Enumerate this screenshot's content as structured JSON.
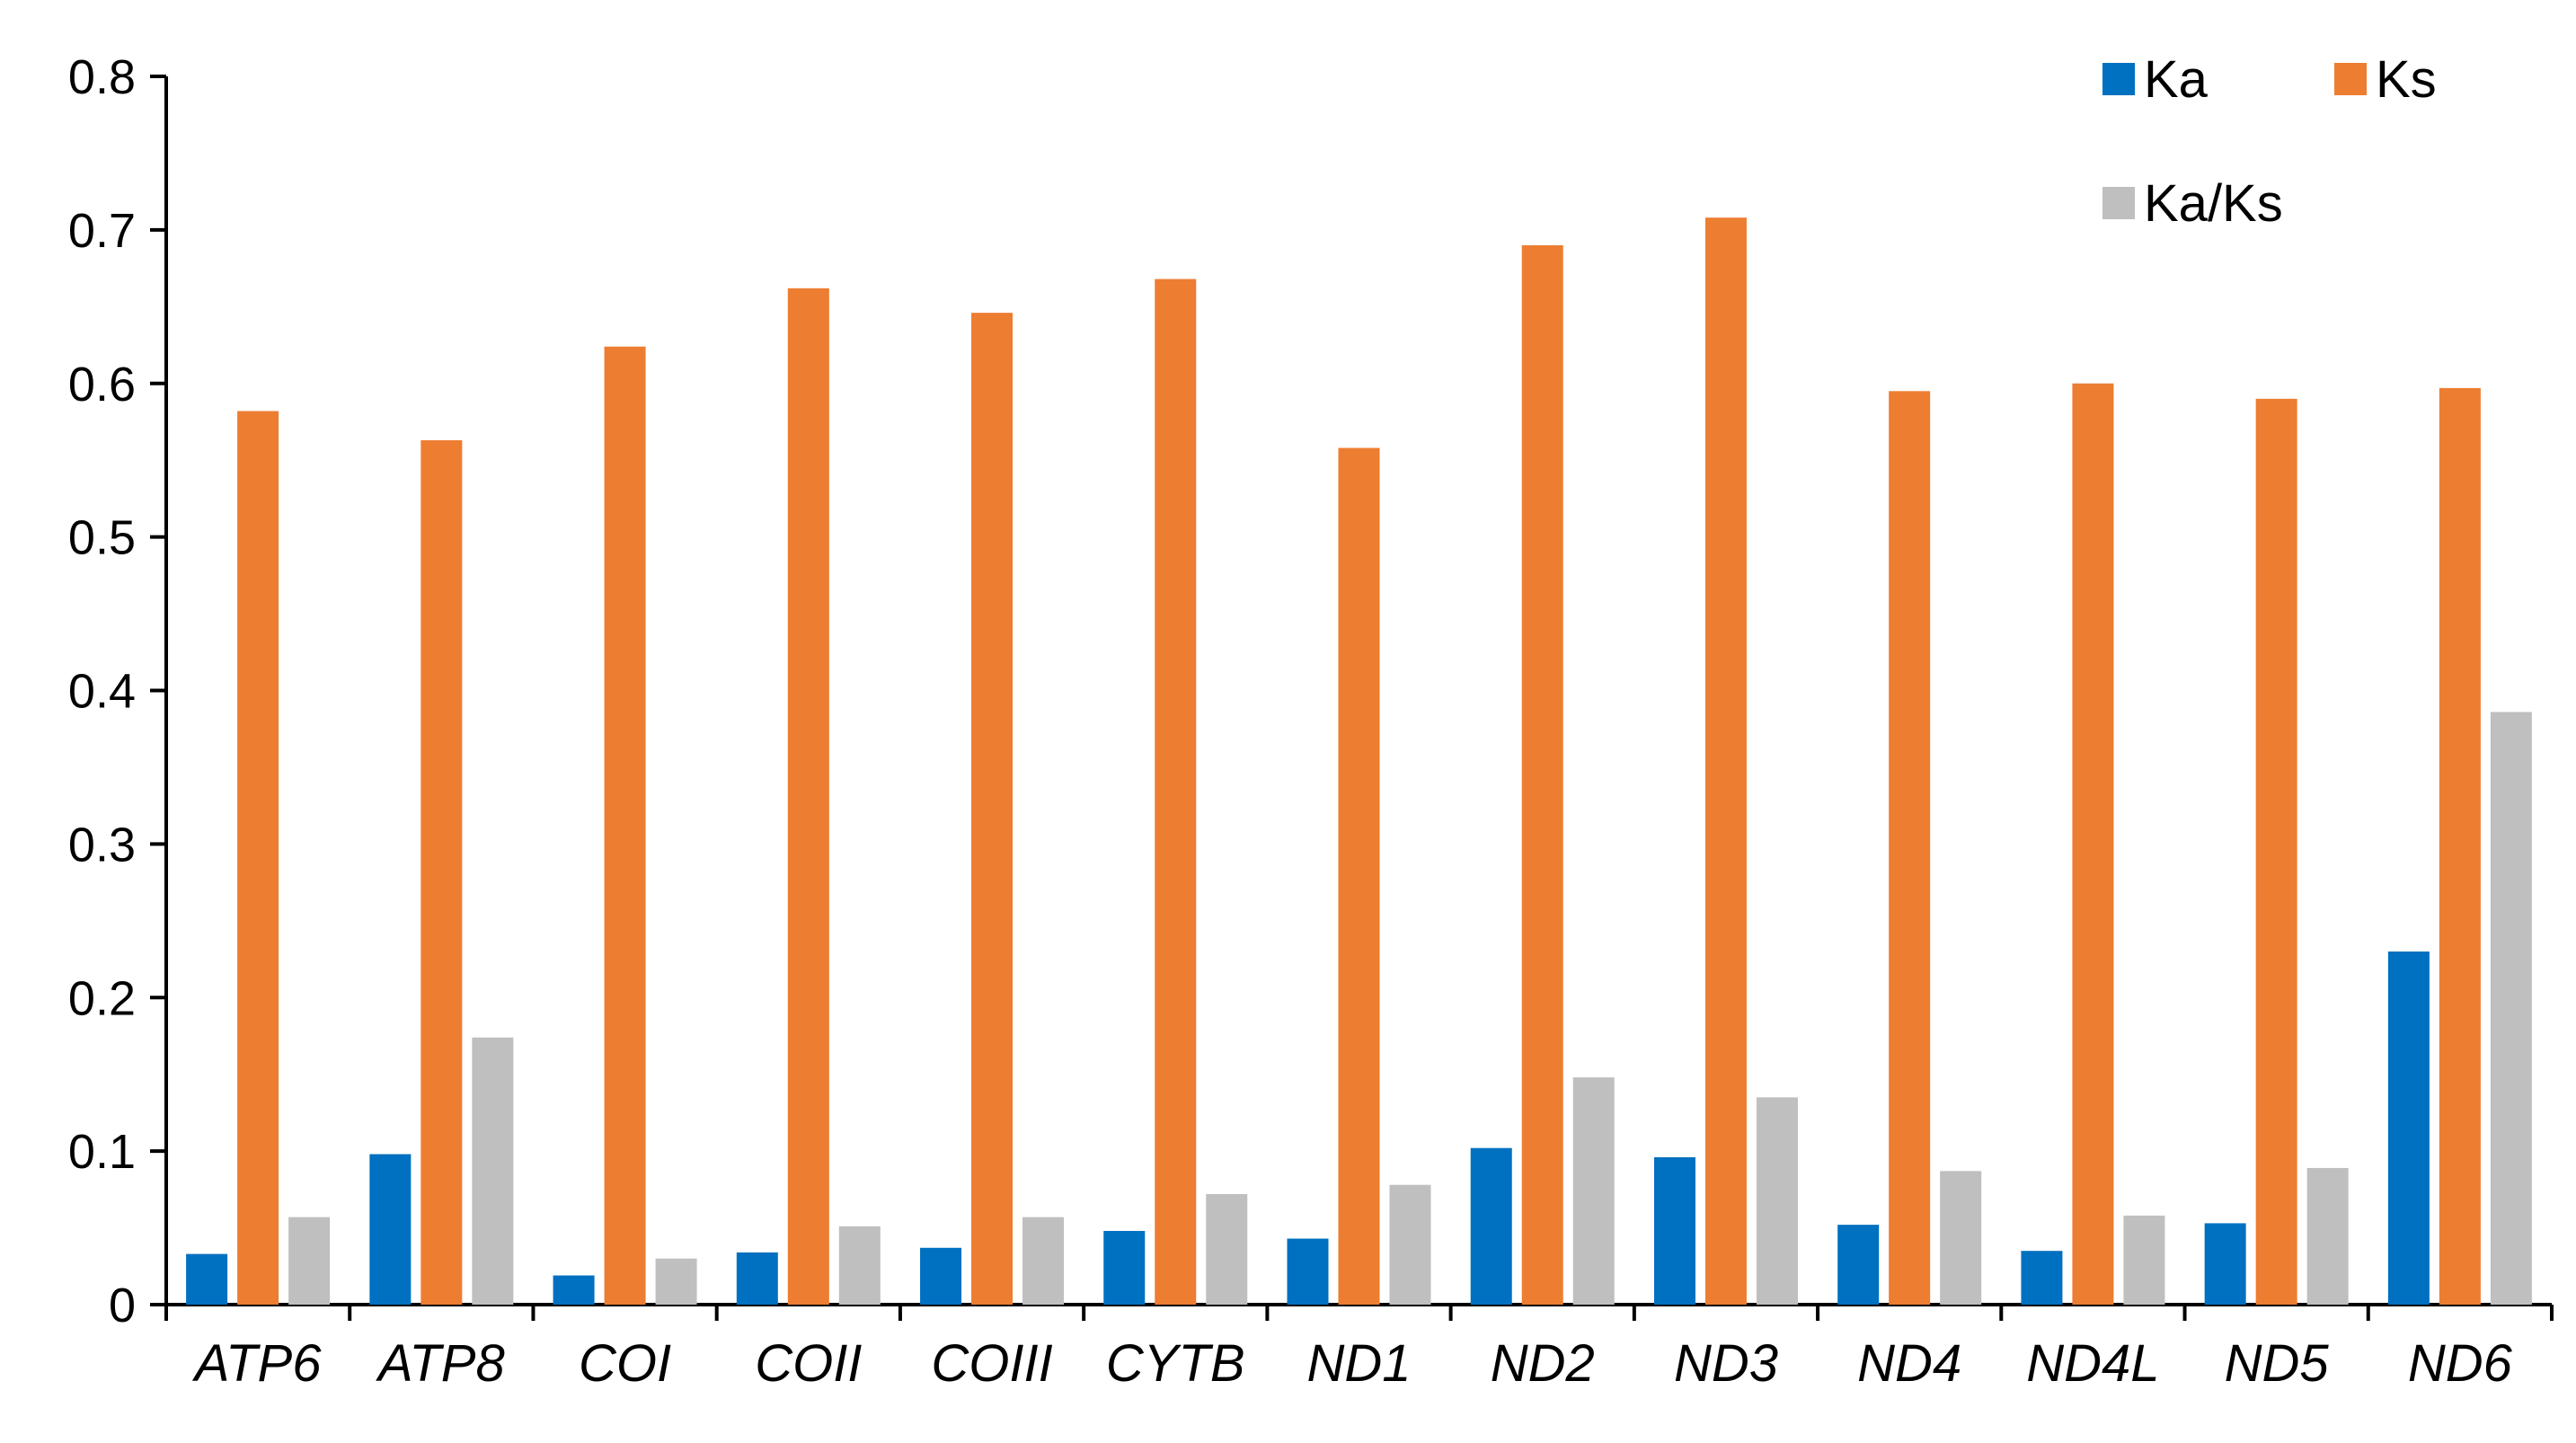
{
  "chart_data": {
    "type": "bar",
    "title": "",
    "xlabel": "",
    "ylabel": "",
    "ylim": [
      0,
      0.8
    ],
    "yticks": [
      "0",
      "0.1",
      "0.2",
      "0.3",
      "0.4",
      "0.5",
      "0.6",
      "0.7",
      "0.8"
    ],
    "grid": false,
    "legend_position": "top-right",
    "categories": [
      "ATP6",
      "ATP8",
      "COI",
      "COII",
      "COIII",
      "CYTB",
      "ND1",
      "ND2",
      "ND3",
      "ND4",
      "ND4L",
      "ND5",
      "ND6"
    ],
    "series": [
      {
        "name": "Ka",
        "color": "#0070C0",
        "values": [
          0.033,
          0.098,
          0.019,
          0.034,
          0.037,
          0.048,
          0.043,
          0.102,
          0.096,
          0.052,
          0.035,
          0.053,
          0.23
        ]
      },
      {
        "name": "Ks",
        "color": "#ED7D31",
        "values": [
          0.582,
          0.563,
          0.624,
          0.662,
          0.646,
          0.668,
          0.558,
          0.69,
          0.708,
          0.595,
          0.6,
          0.59,
          0.597
        ]
      },
      {
        "name": "Ka/Ks",
        "color": "#BFBFBF",
        "values": [
          0.057,
          0.174,
          0.03,
          0.051,
          0.057,
          0.072,
          0.078,
          0.148,
          0.135,
          0.087,
          0.058,
          0.089,
          0.386
        ]
      }
    ]
  }
}
